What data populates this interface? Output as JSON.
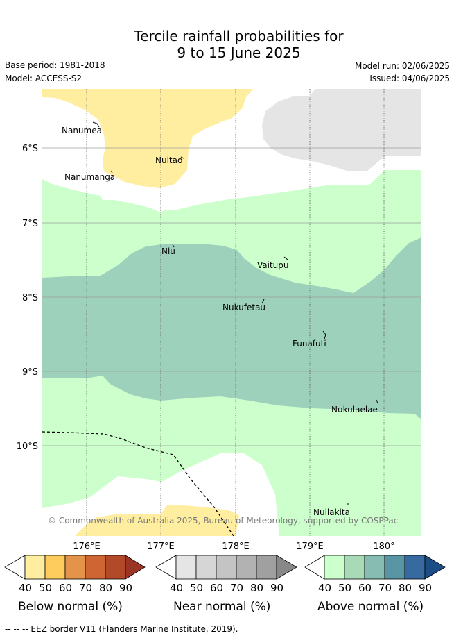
{
  "title": {
    "line1": "Tercile rainfall probabilities for",
    "line2": "9 to 15 June 2025"
  },
  "meta": {
    "base_period": "Base period: 1981-2018",
    "model": "Model: ACCESS-S2",
    "model_run": "Model run: 02/06/2025",
    "issued": "Issued: 04/06/2025"
  },
  "map": {
    "lat_labels": [
      "6°S",
      "7°S",
      "8°S",
      "9°S",
      "10°S"
    ],
    "lon_labels": [
      "176°E",
      "177°E",
      "178°E",
      "179°E",
      "180°"
    ],
    "places": [
      "Nanumea",
      "Nuitao",
      "Nanumanga",
      "Niu",
      "Vaitupu",
      "Nukufetau",
      "Funafuti",
      "Nukulaelae",
      "Nuilakita"
    ],
    "copyright": "© Commonwealth of Australia 2025, Bureau of Meteorology, supported by COSPPac",
    "colors": {
      "below_normal_50": "#ffeda0",
      "near_normal_40": "#e5e5e5",
      "above_normal_40": "#ccffcc",
      "above_normal_50": "#9ed1bb",
      "ocean": "#ffffff",
      "grid": "#999999"
    }
  },
  "colorbars": {
    "tick_labels": [
      "40",
      "50",
      "60",
      "70",
      "80",
      "90"
    ],
    "below": {
      "label": "Below normal (%)",
      "colors": [
        "#ffeda0",
        "#fecc5c",
        "#e3944a",
        "#d06534",
        "#b24a2a",
        "#9a3525"
      ]
    },
    "near": {
      "label": "Near normal (%)",
      "colors": [
        "#e5e5e5",
        "#d6d6d6",
        "#c4c4c4",
        "#b2b2b2",
        "#a0a0a0",
        "#888888"
      ]
    },
    "above": {
      "label": "Above normal (%)",
      "colors": [
        "#ccffcc",
        "#a9dab7",
        "#86bcb1",
        "#5a95a5",
        "#366aa1",
        "#1b4d86"
      ]
    }
  },
  "footer": "--  --  -- EEZ border V11 (Flanders Marine Institute, 2019)."
}
